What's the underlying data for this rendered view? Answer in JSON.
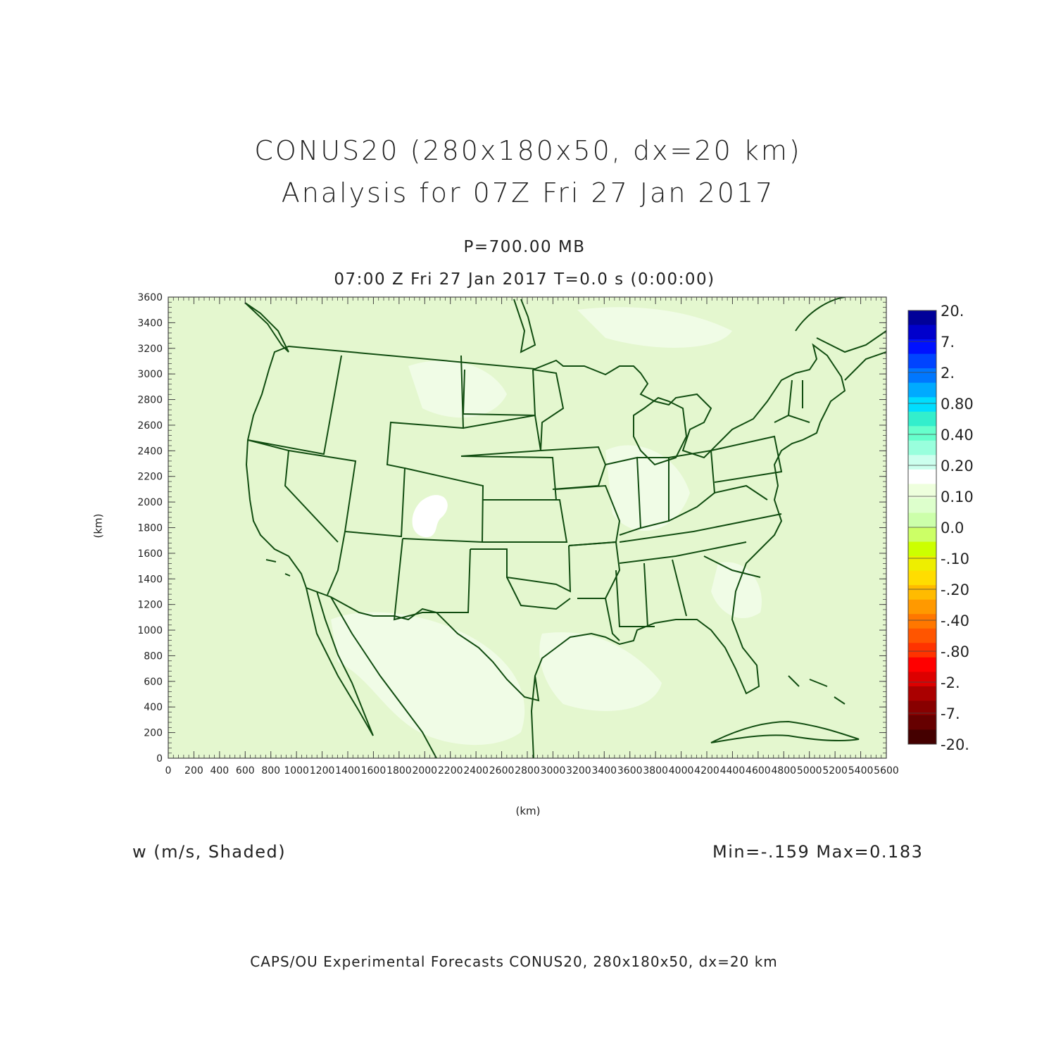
{
  "titles": {
    "line1": "CONUS20 (280x180x50, dx=20 km)",
    "line2": "Analysis for 07Z Fri 27 Jan 2017",
    "level": "P=700.00 MB",
    "time": "07:00 Z Fri 27 Jan 2017    T=0.0 s (0:00:00)"
  },
  "axes": {
    "x_label": "(km)",
    "y_label": "(km)",
    "x_ticks": [
      "0",
      "200",
      "400",
      "600",
      "800",
      "1000",
      "1200",
      "1400",
      "1600",
      "1800",
      "2000",
      "2200",
      "2400",
      "2600",
      "2800",
      "3000",
      "3200",
      "3400",
      "3600",
      "3800",
      "4000",
      "4200",
      "4400",
      "4600",
      "4800",
      "5000",
      "5200",
      "5400",
      "5600"
    ],
    "y_ticks": [
      "0",
      "200",
      "400",
      "600",
      "800",
      "1000",
      "1200",
      "1400",
      "1600",
      "1800",
      "2000",
      "2200",
      "2400",
      "2600",
      "2800",
      "3000",
      "3200",
      "3400",
      "3600"
    ],
    "x_range": [
      0,
      5600
    ],
    "y_range": [
      0,
      3600
    ]
  },
  "colorbar": {
    "labels": [
      "20.",
      "7.",
      "2.",
      "0.80",
      "0.40",
      "0.20",
      "0.10",
      "0.0",
      "-.10",
      "-.20",
      "-.40",
      "-.80",
      "-2.",
      "-7.",
      "-20."
    ],
    "colors": [
      "#000099",
      "#0000cc",
      "#0011ff",
      "#0044ff",
      "#0077ff",
      "#00aaff",
      "#00ddff",
      "#33eecc",
      "#66ffcc",
      "#99ffdd",
      "#ccffee",
      "#ffffff",
      "#eeffdd",
      "#ddffcc",
      "#ccffaa",
      "#ccff66",
      "#ccff00",
      "#eeee00",
      "#ffdd00",
      "#ffbb00",
      "#ff9900",
      "#ff7700",
      "#ff5500",
      "#ff3300",
      "#ff0000",
      "#dd0000",
      "#aa0000",
      "#880000",
      "#660000",
      "#440000"
    ]
  },
  "field": {
    "variable_label": "w (m/s, Shaded)",
    "minmax": "Min=-.159 Max=0.183",
    "background_color": "#e4f7cf",
    "light_color": "#f0fce6",
    "border_color": "#114d11"
  },
  "footer": "CAPS/OU Experimental Forecasts  CONUS20, 280x180x50, dx=20 km"
}
